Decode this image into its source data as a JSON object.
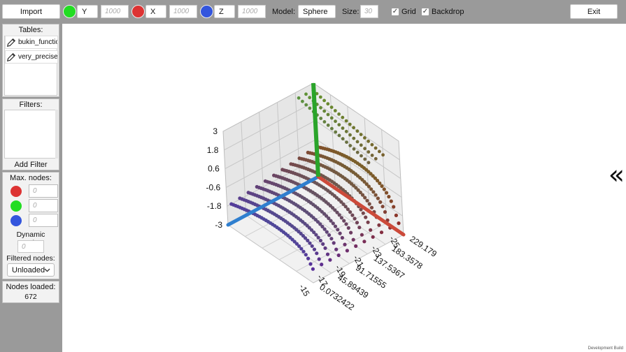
{
  "toolbar": {
    "import_label": "Import",
    "axes": [
      {
        "color": "#22dd22",
        "label": "Y",
        "placeholder": "1000"
      },
      {
        "color": "#dd3333",
        "label": "X",
        "placeholder": "1000"
      },
      {
        "color": "#3355dd",
        "label": "Z",
        "placeholder": "1000"
      }
    ],
    "model_label": "Model:",
    "model_value": "Sphere",
    "size_label": "Size:",
    "size_placeholder": "30",
    "grid_label": "Grid",
    "backdrop_label": "Backdrop",
    "grid_checked": true,
    "backdrop_checked": true,
    "exit_label": "Exit"
  },
  "sidebar": {
    "tables_title": "Tables:",
    "tables": [
      "bukin_functio",
      "very_precise"
    ],
    "filters_title": "Filters:",
    "add_filter_label": "Add Filter",
    "max_nodes_title": "Max. nodes:",
    "max_nodes": [
      {
        "color": "#dd3333",
        "placeholder": "0"
      },
      {
        "color": "#22dd22",
        "placeholder": "0"
      },
      {
        "color": "#3355dd",
        "placeholder": "0"
      }
    ],
    "dynamic_spacing_label": "Dynamic spacing:",
    "dynamic_spacing_placeholder": "0",
    "filtered_nodes_label": "Filtered nodes:",
    "filtered_nodes_value": "Unloaded",
    "nodes_loaded_label": "Nodes loaded:",
    "nodes_loaded_value": "672"
  },
  "viewport": {
    "collapse_glyph": "«",
    "y_ticks": [
      "3",
      "1.8",
      "0.6",
      "-0.6",
      "-1.8",
      "-3"
    ],
    "x_ticks": [
      "-15",
      "-17",
      "-19",
      "-21",
      "-23",
      "-25"
    ],
    "z_ticks": [
      "0.0732422",
      "45.89439",
      "91.71555",
      "137.5367",
      "183.3578",
      "229.179"
    ],
    "watermark": "Development Build"
  }
}
